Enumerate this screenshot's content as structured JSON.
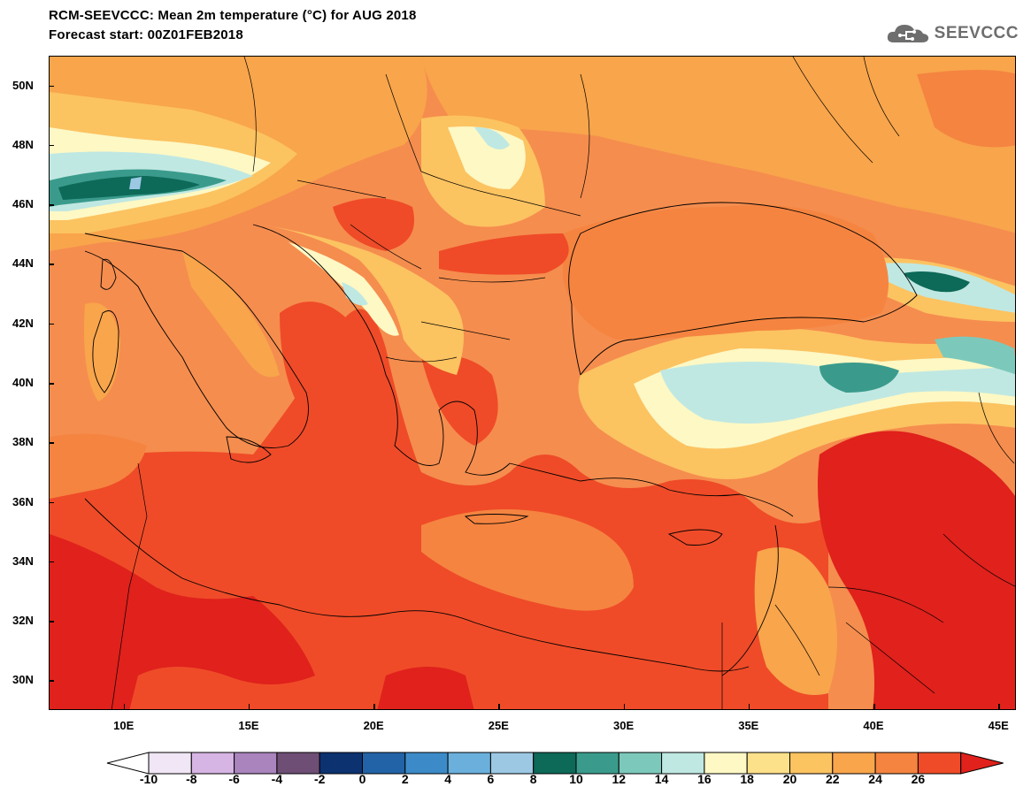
{
  "header": {
    "title_line1": "RCM-SEEVCCC: Mean 2m temperature (°C) for AUG 2018",
    "title_line2": "Forecast start: 00Z01FEB2018",
    "logo_text": "SEEVCCC",
    "logo_icon": "cloud-icon"
  },
  "map": {
    "variable": "Mean 2m temperature",
    "units": "°C",
    "lon_range": [
      7,
      45.7
    ],
    "lat_range": [
      29,
      51
    ],
    "lat_ticks": [
      "50N",
      "48N",
      "46N",
      "44N",
      "42N",
      "40N",
      "38N",
      "36N",
      "34N",
      "32N",
      "30N"
    ],
    "lat_values": [
      50,
      48,
      46,
      44,
      42,
      40,
      38,
      36,
      34,
      32,
      30
    ],
    "lon_ticks": [
      "10E",
      "15E",
      "20E",
      "25E",
      "30E",
      "35E",
      "40E",
      "45E"
    ],
    "lon_values": [
      10,
      15,
      20,
      25,
      30,
      35,
      40,
      45
    ]
  },
  "colorbar": {
    "levels": [
      "-10",
      "-8",
      "-6",
      "-4",
      "-2",
      "0",
      "2",
      "4",
      "6",
      "8",
      "10",
      "12",
      "14",
      "16",
      "18",
      "20",
      "22",
      "24",
      "26"
    ],
    "colors": [
      "#f0e6f5",
      "#d6b4e3",
      "#a984bd",
      "#6e4e74",
      "#0c3270",
      "#2163a6",
      "#3c8bc8",
      "#6bb0dc",
      "#9cc8e4",
      "#0d6958",
      "#3a9b8c",
      "#7cc9bb",
      "#c0e8e2",
      "#fdf8c4",
      "#fde08a",
      "#fcc361",
      "#f8a54b",
      "#f58440",
      "#ef4b28"
    ],
    "under_color": "#ffffff",
    "over_color": "#e0211c"
  }
}
